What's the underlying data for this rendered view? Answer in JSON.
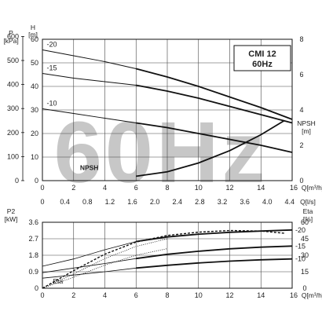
{
  "chart_data": [
    {
      "type": "line",
      "title": "CMI 12\n60Hz",
      "watermark": "60Hz",
      "x_axis": {
        "label": "Q[m³/h]",
        "range": [
          0,
          16
        ],
        "ticks": [
          0,
          2,
          4,
          6,
          8,
          10,
          12,
          14,
          16
        ]
      },
      "x_axis2": {
        "label": "Q[l/s]",
        "ticks": [
          "0",
          "0.4",
          "0.8",
          "1.2",
          "1.6",
          "2.0",
          "2.4",
          "2.8",
          "3.2",
          "3.6",
          "4.0",
          "4.4"
        ]
      },
      "y_axis_left_outer": {
        "label": "P",
        "unit": "[kPa]",
        "ticks": [
          "0",
          "100",
          "200",
          "300",
          "400",
          "500",
          "600"
        ]
      },
      "y_axis_left_inner": {
        "label": "H",
        "unit": "[m]",
        "range": [
          0,
          60
        ],
        "ticks": [
          "0",
          "10",
          "20",
          "30",
          "40",
          "50",
          "60"
        ]
      },
      "y_axis_right": {
        "label": "NPSH",
        "unit": "[m]",
        "range": [
          0,
          8
        ],
        "ticks": [
          "0",
          "2",
          "4",
          "6",
          "8"
        ]
      },
      "series": [
        {
          "name": "-20",
          "x": [
            0,
            2,
            4,
            6,
            8,
            10,
            12,
            14,
            16
          ],
          "y": [
            55.5,
            53,
            50.5,
            47.5,
            44,
            40,
            35.5,
            31,
            26
          ]
        },
        {
          "name": "-15",
          "x": [
            0,
            2,
            4,
            6,
            8,
            10,
            12,
            14,
            16
          ],
          "y": [
            45.5,
            43.5,
            42,
            40.5,
            38,
            35,
            31.5,
            28,
            24.5
          ]
        },
        {
          "name": "-10",
          "x": [
            0,
            2,
            4,
            6,
            8,
            10,
            12,
            14,
            16
          ],
          "y": [
            30.5,
            28.5,
            26.5,
            24.5,
            22.5,
            20,
            17.5,
            15,
            12
          ]
        },
        {
          "name": "NPSH",
          "axis": "right",
          "x": [
            6,
            8,
            10,
            12,
            14,
            15.5
          ],
          "y": [
            0.25,
            0.5,
            1,
            1.7,
            2.6,
            3.4
          ]
        }
      ]
    },
    {
      "type": "line",
      "x_axis": {
        "label": "Q[m³/h]",
        "range": [
          0,
          16
        ],
        "ticks": [
          0,
          2,
          4,
          6,
          8,
          10,
          12,
          14,
          16
        ]
      },
      "y_axis_left": {
        "label": "P2",
        "unit": "[kW]",
        "range": [
          0,
          3.6
        ],
        "ticks": [
          "0",
          "0.9",
          "1.8",
          "2.7",
          "3.6"
        ]
      },
      "y_axis_right": {
        "label": "Eta",
        "unit": "[%]",
        "range": [
          0,
          60
        ],
        "ticks": [
          "0",
          "15",
          "30",
          "45",
          "60"
        ]
      },
      "eta_label": "Eta",
      "series": [
        {
          "name": "-20",
          "x": [
            6,
            8,
            10,
            12,
            14,
            16
          ],
          "y": [
            2.55,
            2.8,
            2.95,
            3.05,
            3.12,
            3.18
          ]
        },
        {
          "name": "-15",
          "x": [
            6,
            8,
            10,
            12,
            14,
            16
          ],
          "y": [
            1.62,
            1.85,
            2.02,
            2.15,
            2.24,
            2.3
          ]
        },
        {
          "name": "-10",
          "x": [
            6,
            8,
            10,
            12,
            14,
            16
          ],
          "y": [
            1.1,
            1.25,
            1.38,
            1.48,
            1.55,
            1.6
          ]
        },
        {
          "axis": "left",
          "style": "thin",
          "x": [
            0,
            2,
            4,
            6
          ],
          "y": [
            1.2,
            1.6,
            2.1,
            2.55
          ]
        },
        {
          "axis": "left",
          "style": "thin",
          "x": [
            0,
            2,
            4,
            6
          ],
          "y": [
            0.85,
            1.1,
            1.35,
            1.62
          ]
        },
        {
          "axis": "left",
          "style": "thin",
          "x": [
            0,
            2,
            4,
            6
          ],
          "y": [
            0.55,
            0.72,
            0.9,
            1.1
          ]
        },
        {
          "axis": "right",
          "style": "dashed",
          "x": [
            0,
            2,
            4,
            6,
            8,
            10,
            12,
            14,
            15.5
          ],
          "y": [
            0,
            16,
            31,
            42,
            48,
            51,
            52.5,
            52,
            50
          ]
        },
        {
          "axis": "right",
          "style": "dotted",
          "x": [
            0,
            2,
            4,
            6,
            8
          ],
          "y": [
            0,
            13,
            27,
            38,
            45
          ]
        },
        {
          "axis": "right",
          "style": "dotted",
          "x": [
            0,
            2,
            4,
            6,
            8
          ],
          "y": [
            0,
            10,
            21,
            30,
            36
          ]
        }
      ]
    }
  ]
}
